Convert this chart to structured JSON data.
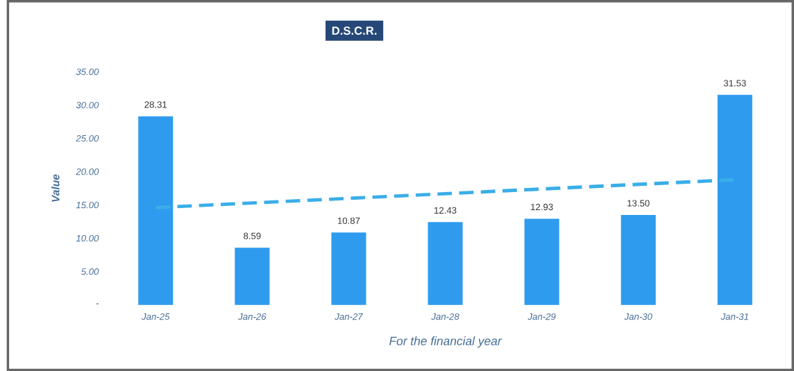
{
  "chart_data": {
    "type": "bar",
    "title": "D.S.C.R.",
    "xlabel": "For the financial year",
    "ylabel": "Value",
    "categories": [
      "Jan-25",
      "Jan-26",
      "Jan-27",
      "Jan-28",
      "Jan-29",
      "Jan-30",
      "Jan-31"
    ],
    "series": [
      {
        "color": "#2f9bee",
        "values": [
          28.31,
          8.59,
          10.87,
          12.43,
          12.93,
          13.5,
          31.53
        ],
        "value_labels": [
          "28.31",
          "8.59",
          "10.87",
          "12.43",
          "12.93",
          "13.50",
          "31.53"
        ]
      },
      {
        "type": "line",
        "color": "#3aaee8",
        "line_style": "dashed",
        "x": [
          "Jan-25",
          "Jan-31"
        ],
        "values": [
          14.6,
          18.8
        ]
      }
    ],
    "ylim": [
      0,
      35
    ],
    "yticks": [
      {
        "value": 0,
        "label": "-"
      },
      {
        "value": 5,
        "label": "5.00"
      },
      {
        "value": 10,
        "label": "10.00"
      },
      {
        "value": 15,
        "label": "15.00"
      },
      {
        "value": 20,
        "label": "20.00"
      },
      {
        "value": 25,
        "label": "25.00"
      },
      {
        "value": 30,
        "label": "30.00"
      },
      {
        "value": 35,
        "label": "35.00"
      }
    ],
    "grid": false
  }
}
